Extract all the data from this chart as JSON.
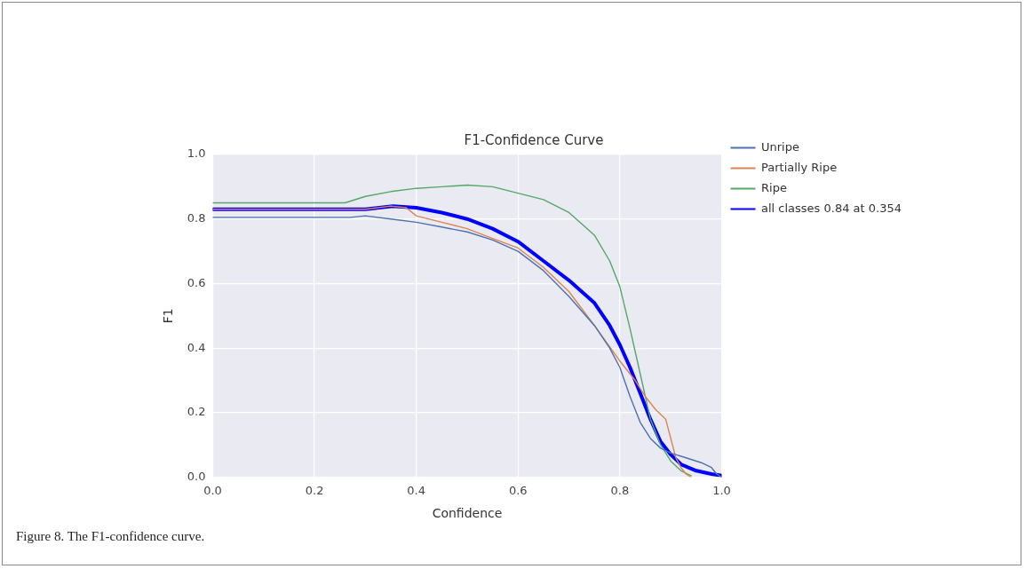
{
  "chart_data": {
    "type": "line",
    "title": "F1-Confidence Curve",
    "xlabel": "Confidence",
    "ylabel": "F1",
    "xlim": [
      0,
      1
    ],
    "ylim": [
      0,
      1
    ],
    "xticks": [
      {
        "value": 0,
        "label": "0.0"
      },
      0.2,
      0.4,
      0.6,
      0.8,
      {
        "value": 1,
        "label": "1.0"
      }
    ],
    "yticks": [
      {
        "value": 0,
        "label": "0.0"
      },
      0.2,
      0.4,
      0.6,
      0.8,
      {
        "value": 1,
        "label": "1.0"
      }
    ],
    "grid": true,
    "legend": "top right",
    "marker": "none",
    "line_style": "solid",
    "annotations": [
      "Figure 8. The F1-confidence curve."
    ],
    "series": [
      {
        "name": "Unripe",
        "color": "#4c72b0",
        "x": [
          0,
          0.27,
          0.3,
          0.35,
          0.4,
          0.45,
          0.5,
          0.55,
          0.6,
          0.65,
          0.7,
          0.75,
          0.78,
          0.8,
          0.82,
          0.84,
          0.86,
          0.88,
          0.9,
          0.93,
          0.96,
          0.98,
          0.99,
          1.0
        ],
        "values": [
          0.805,
          0.805,
          0.81,
          0.8,
          0.79,
          0.775,
          0.76,
          0.735,
          0.7,
          0.64,
          0.56,
          0.47,
          0.4,
          0.34,
          0.25,
          0.17,
          0.12,
          0.09,
          0.075,
          0.06,
          0.045,
          0.03,
          0.01,
          0.0
        ]
      },
      {
        "name": "Partially Ripe",
        "color": "#dd8452",
        "x": [
          0,
          0.3,
          0.35,
          0.38,
          0.4,
          0.45,
          0.5,
          0.55,
          0.6,
          0.65,
          0.7,
          0.75,
          0.8,
          0.83,
          0.85,
          0.87,
          0.89,
          0.9,
          0.91,
          0.92,
          0.93,
          0.94
        ],
        "values": [
          0.83,
          0.83,
          0.84,
          0.835,
          0.81,
          0.79,
          0.77,
          0.74,
          0.71,
          0.65,
          0.575,
          0.47,
          0.36,
          0.3,
          0.25,
          0.21,
          0.18,
          0.12,
          0.06,
          0.03,
          0.01,
          0.0
        ]
      },
      {
        "name": "Ripe",
        "color": "#55a868",
        "x": [
          0,
          0.26,
          0.3,
          0.35,
          0.4,
          0.45,
          0.5,
          0.55,
          0.6,
          0.65,
          0.7,
          0.75,
          0.78,
          0.8,
          0.82,
          0.84,
          0.86,
          0.88,
          0.9,
          0.92,
          0.94
        ],
        "values": [
          0.85,
          0.85,
          0.87,
          0.885,
          0.895,
          0.9,
          0.905,
          0.9,
          0.88,
          0.86,
          0.82,
          0.75,
          0.67,
          0.59,
          0.46,
          0.32,
          0.18,
          0.1,
          0.05,
          0.02,
          0.005
        ]
      },
      {
        "name": "all classes 0.84 at 0.354",
        "color": "#0000ff",
        "x": [
          0,
          0.3,
          0.354,
          0.4,
          0.45,
          0.5,
          0.55,
          0.6,
          0.65,
          0.7,
          0.75,
          0.78,
          0.8,
          0.82,
          0.84,
          0.86,
          0.88,
          0.9,
          0.92,
          0.95,
          0.98,
          1.0
        ],
        "values": [
          0.83,
          0.83,
          0.84,
          0.835,
          0.82,
          0.8,
          0.77,
          0.73,
          0.67,
          0.61,
          0.54,
          0.47,
          0.41,
          0.34,
          0.26,
          0.18,
          0.11,
          0.07,
          0.04,
          0.02,
          0.01,
          0.005
        ]
      }
    ]
  }
}
